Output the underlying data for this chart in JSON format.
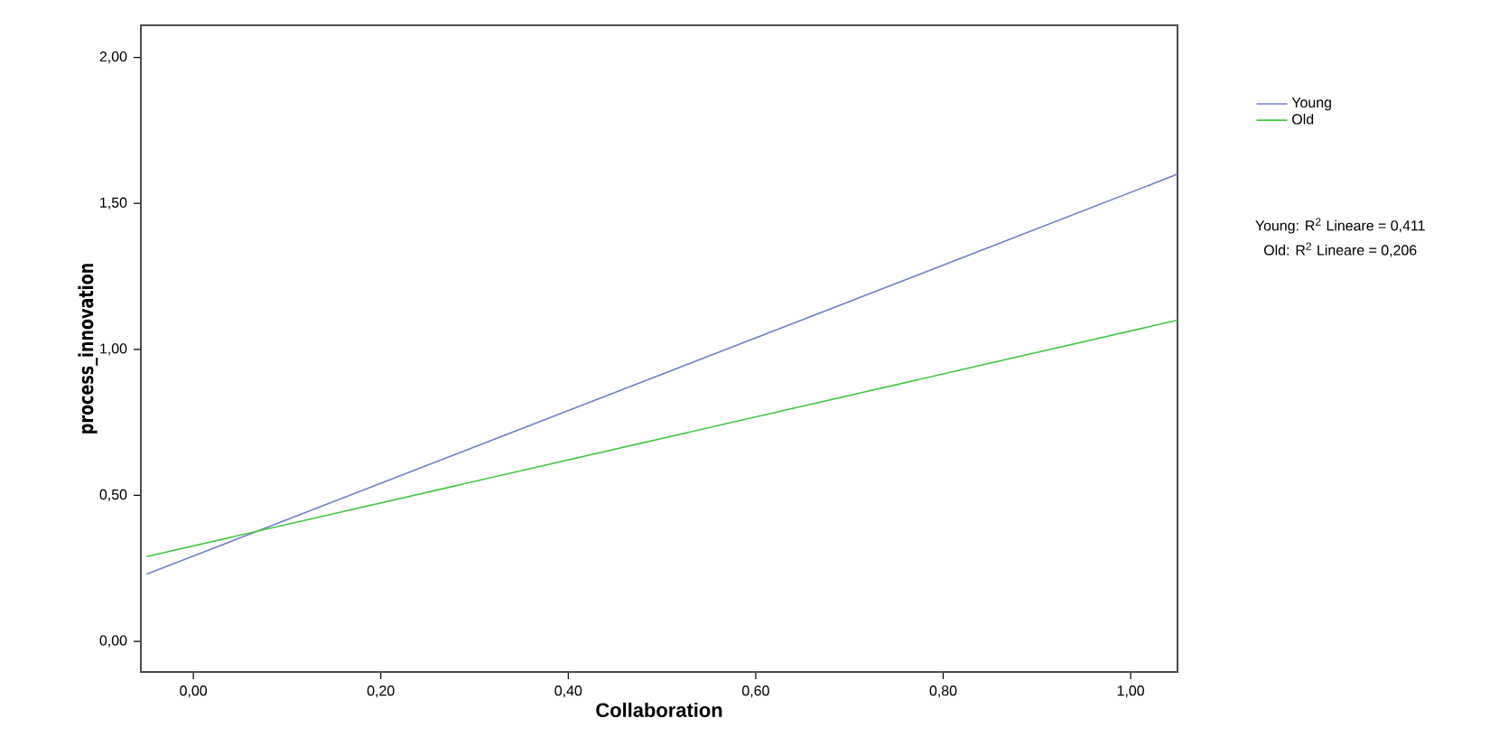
{
  "chart_data": {
    "type": "line",
    "xlabel": "Collaboration",
    "ylabel": "process_innovation",
    "x": [
      -0.05,
      1.05
    ],
    "series": [
      {
        "name": "Young",
        "color": "#7080c8",
        "values": [
          0.23,
          1.6
        ]
      },
      {
        "name": "Old",
        "color": "#40c840",
        "values": [
          0.29,
          1.1
        ]
      }
    ],
    "xlim": [
      -0.056,
      1.05
    ],
    "ylim": [
      -0.105,
      2.11
    ],
    "xticks": [
      {
        "value": 0,
        "label": "0,00"
      },
      {
        "value": 0.2,
        "label": "0,20"
      },
      {
        "value": 0.4,
        "label": "0,40"
      },
      {
        "value": 0.6,
        "label": "0,60"
      },
      {
        "value": 0.8,
        "label": "0,80"
      },
      {
        "value": 1,
        "label": "1,00"
      }
    ],
    "yticks": [
      {
        "value": 0,
        "label": "0,00"
      },
      {
        "value": 0.5,
        "label": "0,50"
      },
      {
        "value": 1,
        "label": "1,00"
      },
      {
        "value": 1.5,
        "label": "1,50"
      },
      {
        "value": 2,
        "label": "2,00"
      }
    ],
    "legend": "right",
    "grid": false,
    "marker": "none",
    "annotations": [
      "Young: R$^{2}$ Lineare = 0,411",
      "Old: R$^{2}$ Lineare = 0,206"
    ]
  }
}
